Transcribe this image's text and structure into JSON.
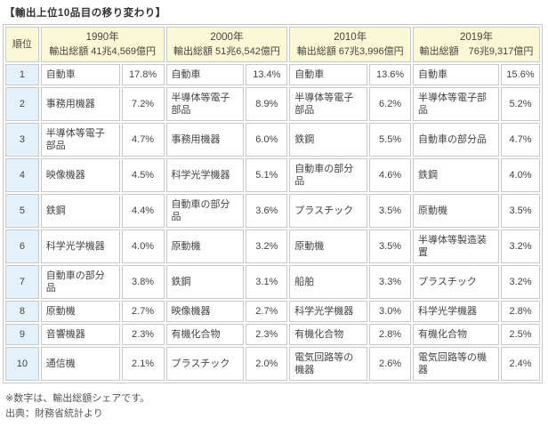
{
  "title": "【輸出上位10品目の移り変わり】",
  "table": {
    "rank_header": "順位",
    "years": [
      {
        "year": "1990年",
        "total": "輸出総額 41兆4,569億円"
      },
      {
        "year": "2000年",
        "total": "輸出総額 51兆6,542億円"
      },
      {
        "year": "2010年",
        "total": "輸出総額 67兆3,996億円"
      },
      {
        "year": "2019年",
        "total": "輸出総額　76兆9,317億円"
      }
    ],
    "rows": [
      {
        "rank": "1",
        "items": [
          {
            "name": "自動車",
            "share": "17.8%"
          },
          {
            "name": "自動車",
            "share": "13.4%"
          },
          {
            "name": "自動車",
            "share": "13.6%"
          },
          {
            "name": "自動車",
            "share": "15.6%"
          }
        ]
      },
      {
        "rank": "2",
        "items": [
          {
            "name": "事務用機器",
            "share": "7.2%"
          },
          {
            "name": "半導体等電子部品",
            "share": "8.9%"
          },
          {
            "name": "半導体等電子部品",
            "share": "6.2%"
          },
          {
            "name": "半導体等電子部品",
            "share": "5.2%"
          }
        ]
      },
      {
        "rank": "3",
        "items": [
          {
            "name": "半導体等電子部品",
            "share": "4.7%"
          },
          {
            "name": "事務用機器",
            "share": "6.0%"
          },
          {
            "name": "鉄鋼",
            "share": "5.5%"
          },
          {
            "name": "自動車の部分品",
            "share": "4.7%"
          }
        ]
      },
      {
        "rank": "4",
        "items": [
          {
            "name": "映像機器",
            "share": "4.5%"
          },
          {
            "name": "科学光学機器",
            "share": "5.1%"
          },
          {
            "name": "自動車の部分品",
            "share": "4.6%"
          },
          {
            "name": "鉄鋼",
            "share": "4.0%"
          }
        ]
      },
      {
        "rank": "5",
        "items": [
          {
            "name": "鉄鋼",
            "share": "4.4%"
          },
          {
            "name": "自動車の部分品",
            "share": "3.6%"
          },
          {
            "name": "プラスチック",
            "share": "3.5%"
          },
          {
            "name": "原動機",
            "share": "3.5%"
          }
        ]
      },
      {
        "rank": "6",
        "items": [
          {
            "name": "科学光学機器",
            "share": "4.0%"
          },
          {
            "name": "原動機",
            "share": "3.2%"
          },
          {
            "name": "原動機",
            "share": "3.5%"
          },
          {
            "name": "半導体等製造装置",
            "share": "3.2%"
          }
        ]
      },
      {
        "rank": "7",
        "items": [
          {
            "name": "自動車の部分品",
            "share": "3.8%"
          },
          {
            "name": "鉄鋼",
            "share": "3.1%"
          },
          {
            "name": "船舶",
            "share": "3.3%"
          },
          {
            "name": "プラスチック",
            "share": "3.2%"
          }
        ]
      },
      {
        "rank": "8",
        "items": [
          {
            "name": "原動機",
            "share": "2.7%"
          },
          {
            "name": "映像機器",
            "share": "2.7%"
          },
          {
            "name": "科学光学機器",
            "share": "3.0%"
          },
          {
            "name": "科学光学機器",
            "share": "2.8%"
          }
        ]
      },
      {
        "rank": "9",
        "items": [
          {
            "name": "音響機器",
            "share": "2.3%"
          },
          {
            "name": "有機化合物",
            "share": "2.3%"
          },
          {
            "name": "有機化合物",
            "share": "2.8%"
          },
          {
            "name": "有機化合物",
            "share": "2.5%"
          }
        ]
      },
      {
        "rank": "10",
        "items": [
          {
            "name": "通信機",
            "share": "2.1%"
          },
          {
            "name": "プラスチック",
            "share": "2.0%"
          },
          {
            "name": "電気回路等の機器",
            "share": "2.6%"
          },
          {
            "name": "電気回路等の機器",
            "share": "2.4%"
          }
        ]
      }
    ]
  },
  "footer": {
    "note": "※数字は、輸出総額シェアです。",
    "source": "出典：財務省統計より"
  },
  "colors": {
    "header_bg": "#fbf8d5",
    "rank_bg": "#e4f1fa",
    "border": "#c8c8c8",
    "text": "#444444"
  }
}
